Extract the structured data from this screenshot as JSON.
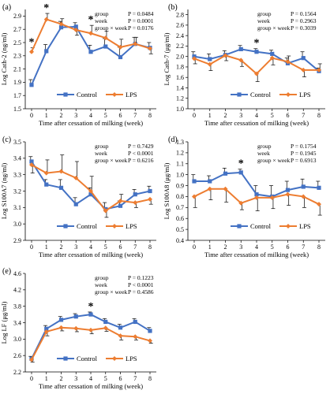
{
  "figure": {
    "colors": {
      "control": "#4472c4",
      "lps": "#ed7d31",
      "error": "#000000"
    }
  },
  "chart_data": [
    {
      "panel_label": "(a)",
      "type": "line",
      "ylabel": "Log Cath-2 (ng/ml)",
      "xlabel": "Time after cessation of milking (week)",
      "ylim": [
        1.5,
        3.0
      ],
      "yticks": [
        1.5,
        1.7,
        1.9,
        2.1,
        2.3,
        2.5,
        2.7,
        2.9
      ],
      "ytick_labels": [
        "1.5",
        "1.7",
        "1.9",
        "2.1",
        "2.3",
        "2.5",
        "2.7",
        "2.9"
      ],
      "x": [
        0,
        1,
        2,
        3,
        4,
        5,
        6,
        7,
        8
      ],
      "series": [
        {
          "name": "Control",
          "values": [
            1.86,
            2.37,
            2.73,
            2.74,
            2.36,
            2.44,
            2.28,
            2.48,
            2.42
          ],
          "errors": [
            0.08,
            0.1,
            0.09,
            0.06,
            0.1,
            0.12,
            0.15,
            0.1,
            0.08
          ]
        },
        {
          "name": "LPS",
          "values": [
            2.36,
            2.85,
            2.78,
            2.69,
            2.64,
            2.57,
            2.43,
            2.48,
            2.41
          ],
          "errors": [
            0.06,
            0.09,
            0.08,
            0.08,
            0.12,
            0.1,
            0.12,
            0.1,
            0.08
          ]
        }
      ],
      "stats": [
        [
          "group",
          "P = 0.0484"
        ],
        [
          "week",
          "P = 0.0001"
        ],
        [
          "group × week",
          "P = 0.0176"
        ]
      ],
      "significant_weeks": [
        0,
        1,
        4
      ],
      "legend": [
        "Control",
        "LPS"
      ]
    },
    {
      "panel_label": "(b)",
      "type": "line",
      "ylabel": "Log Cath-7 (μg/ml)",
      "xlabel": "Time after cessation of milking (week)",
      "ylim": [
        1.0,
        2.9
      ],
      "yticks": [
        1.0,
        1.2,
        1.4,
        1.6,
        1.8,
        2.0,
        2.2,
        2.4,
        2.6,
        2.8
      ],
      "ytick_labels": [
        "1.0",
        "1.2",
        "1.4",
        "1.6",
        "1.8",
        "2.0",
        "2.2",
        "2.4",
        "2.6",
        "2.8"
      ],
      "x": [
        0,
        1,
        2,
        3,
        4,
        5,
        6,
        7,
        8
      ],
      "series": [
        {
          "name": "Control",
          "values": [
            2.0,
            1.95,
            2.03,
            2.14,
            2.09,
            2.05,
            1.87,
            1.97,
            1.72
          ],
          "errors": [
            0.09,
            0.1,
            0.08,
            0.07,
            0.06,
            0.07,
            0.1,
            0.12,
            0.06
          ]
        },
        {
          "name": "LPS",
          "values": [
            1.96,
            1.85,
            2.02,
            1.93,
            1.67,
            1.97,
            1.9,
            1.74,
            1.74
          ],
          "errors": [
            0.1,
            0.12,
            0.1,
            0.12,
            0.15,
            0.13,
            0.11,
            0.13,
            0.12
          ]
        }
      ],
      "stats": [
        [
          "group",
          "P = 0.1564"
        ],
        [
          "week",
          "P = 0.2963"
        ],
        [
          "group × week",
          "P = 0.3039"
        ]
      ],
      "significant_weeks": [
        4
      ],
      "legend": [
        "Control",
        "LPS"
      ]
    },
    {
      "panel_label": "(c)",
      "type": "line",
      "ylabel": "Log S100A7 (ng/ml)",
      "xlabel": "Time after cessation of milking (week)",
      "ylim": [
        2.9,
        3.5
      ],
      "yticks": [
        2.9,
        3.0,
        3.1,
        3.2,
        3.3,
        3.4,
        3.5
      ],
      "ytick_labels": [
        "2.9",
        "3.0",
        "3.1",
        "3.2",
        "3.3",
        "3.4",
        "3.5"
      ],
      "x": [
        0,
        1,
        2,
        3,
        4,
        5,
        6,
        7,
        8
      ],
      "series": [
        {
          "name": "Control",
          "values": [
            3.38,
            3.24,
            3.22,
            3.12,
            3.18,
            3.09,
            3.11,
            3.18,
            3.2
          ],
          "errors": [
            0.03,
            0.03,
            0.05,
            0.04,
            0.04,
            0.04,
            0.03,
            0.03,
            0.03
          ]
        },
        {
          "name": "LPS",
          "values": [
            3.36,
            3.31,
            3.32,
            3.28,
            3.2,
            3.08,
            3.14,
            3.13,
            3.15
          ],
          "errors": [
            0.05,
            0.08,
            0.1,
            0.1,
            0.09,
            0.04,
            0.04,
            0.03,
            0.03
          ]
        }
      ],
      "stats": [
        [
          "group",
          "P = 0.7429"
        ],
        [
          "week",
          "P < 0.0001"
        ],
        [
          "group × week",
          "P = 0.6216"
        ]
      ],
      "significant_weeks": [],
      "legend": [
        "Control",
        "LPS"
      ]
    },
    {
      "panel_label": "(d)",
      "type": "line",
      "ylabel": "Log S100A8 (μg/ml)",
      "xlabel": "Time after cessation of milking (week)",
      "ylim": [
        0.4,
        1.3
      ],
      "yticks": [
        0.4,
        0.5,
        0.6,
        0.7,
        0.8,
        0.9,
        1.0,
        1.1,
        1.2,
        1.3
      ],
      "ytick_labels": [
        "0.4",
        "0.5",
        "0.6",
        "0.7",
        "0.8",
        "0.9",
        "1.0",
        "1.1",
        "1.2",
        "1.3"
      ],
      "x": [
        0,
        1,
        2,
        3,
        4,
        5,
        6,
        7,
        8
      ],
      "series": [
        {
          "name": "Control",
          "values": [
            0.94,
            0.94,
            1.01,
            1.02,
            0.82,
            0.8,
            0.86,
            0.89,
            0.88
          ],
          "errors": [
            0.06,
            0.05,
            0.05,
            0.03,
            0.08,
            0.1,
            0.08,
            0.07,
            0.06
          ]
        },
        {
          "name": "LPS",
          "values": [
            0.8,
            0.87,
            0.87,
            0.74,
            0.79,
            0.79,
            0.82,
            0.8,
            0.73
          ],
          "errors": [
            0.1,
            0.1,
            0.12,
            0.06,
            0.12,
            0.1,
            0.1,
            0.1,
            0.1
          ]
        }
      ],
      "stats": [
        [
          "group",
          "P = 0.1754"
        ],
        [
          "week",
          "P = 0.1945"
        ],
        [
          "group × week",
          "P = 0.6913"
        ]
      ],
      "significant_weeks": [
        3
      ],
      "legend": [
        "Control",
        "LPS"
      ]
    },
    {
      "panel_label": "(e)",
      "type": "line",
      "ylabel": "Log LF (μg/ml)",
      "xlabel": "Time after cessation of milking (week)",
      "ylim": [
        2.2,
        4.6
      ],
      "yticks": [
        2.2,
        2.6,
        3.0,
        3.4,
        3.8,
        4.2,
        4.6
      ],
      "ytick_labels": [
        "2.2",
        "2.6",
        "3.0",
        "3.4",
        "3.8",
        "4.2",
        "4.6"
      ],
      "x": [
        0,
        1,
        2,
        3,
        4,
        5,
        6,
        7,
        8
      ],
      "series": [
        {
          "name": "Control",
          "values": [
            2.52,
            3.25,
            3.47,
            3.55,
            3.6,
            3.42,
            3.28,
            3.42,
            3.2
          ],
          "errors": [
            0.06,
            0.08,
            0.08,
            0.07,
            0.06,
            0.08,
            0.08,
            0.08,
            0.08
          ]
        },
        {
          "name": "LPS",
          "values": [
            2.5,
            3.18,
            3.28,
            3.26,
            3.22,
            3.27,
            3.08,
            3.06,
            2.96
          ],
          "errors": [
            0.06,
            0.1,
            0.08,
            0.08,
            0.09,
            0.08,
            0.1,
            0.08,
            0.06
          ]
        }
      ],
      "stats": [
        [
          "group",
          "P = 0.1223"
        ],
        [
          "week",
          "P < 0.0001"
        ],
        [
          "group × week",
          "P = 0.4586"
        ]
      ],
      "significant_weeks": [
        4
      ],
      "legend": [
        "Control",
        "LPS"
      ]
    }
  ]
}
